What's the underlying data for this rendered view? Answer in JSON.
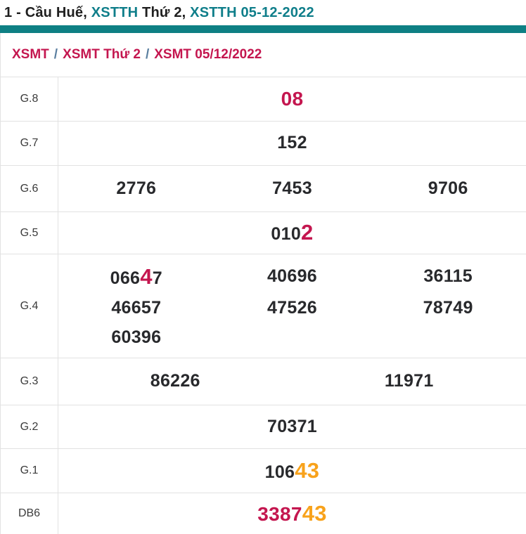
{
  "colors": {
    "teal-bar": "#0e8084",
    "teal-text": "#0f7e8a",
    "crimson": "#c4164f",
    "orange": "#f8a21b",
    "dark": "#1f1f1f",
    "num": "#28292c",
    "label": "#3b3b3b",
    "border": "#e2e2e2",
    "sep": "#5b7fa0"
  },
  "header": {
    "title_parts": [
      {
        "text": "1 - Cầu Huế, ",
        "color": "dark"
      },
      {
        "text": "XSTTH",
        "color": "teal"
      },
      {
        "text": " Thứ 2, ",
        "color": "dark"
      },
      {
        "text": "XSTTH 05-12-2022",
        "color": "teal"
      }
    ]
  },
  "breadcrumb": {
    "separator": "/",
    "items": [
      "XSMT",
      "XSMT Thứ 2",
      "XSMT 05/12/2022"
    ]
  },
  "results": {
    "rows": [
      {
        "label": "G.8",
        "columns": 1,
        "numbers": [
          {
            "segments": [
              {
                "text": "08",
                "color": "crimson",
                "size": "lg"
              }
            ]
          }
        ]
      },
      {
        "label": "G.7",
        "columns": 1,
        "numbers": [
          {
            "segments": [
              {
                "text": "152"
              }
            ]
          }
        ]
      },
      {
        "label": "G.6",
        "columns": 3,
        "numbers": [
          {
            "segments": [
              {
                "text": "2776"
              }
            ]
          },
          {
            "segments": [
              {
                "text": "7453"
              }
            ]
          },
          {
            "segments": [
              {
                "text": "9706"
              }
            ]
          }
        ]
      },
      {
        "label": "G.5",
        "columns": 1,
        "numbers": [
          {
            "segments": [
              {
                "text": "010"
              },
              {
                "text": "2",
                "color": "crimson",
                "size": "xl"
              }
            ]
          }
        ]
      },
      {
        "label": "G.4",
        "columns": 3,
        "numbers": [
          {
            "segments": [
              {
                "text": "066"
              },
              {
                "text": "4",
                "color": "crimson",
                "size": "xl"
              },
              {
                "text": "7"
              }
            ]
          },
          {
            "segments": [
              {
                "text": "40696"
              }
            ]
          },
          {
            "segments": [
              {
                "text": "36115"
              }
            ]
          },
          {
            "segments": [
              {
                "text": "46657"
              }
            ]
          },
          {
            "segments": [
              {
                "text": "47526"
              }
            ]
          },
          {
            "segments": [
              {
                "text": "78749"
              }
            ]
          },
          {
            "segments": [
              {
                "text": "60396"
              }
            ]
          }
        ]
      },
      {
        "label": "G.3",
        "columns": 2,
        "numbers": [
          {
            "segments": [
              {
                "text": "86226"
              }
            ]
          },
          {
            "segments": [
              {
                "text": "11971"
              }
            ]
          }
        ]
      },
      {
        "label": "G.2",
        "columns": 1,
        "numbers": [
          {
            "segments": [
              {
                "text": "70371"
              }
            ]
          }
        ]
      },
      {
        "label": "G.1",
        "columns": 1,
        "numbers": [
          {
            "segments": [
              {
                "text": "106"
              },
              {
                "text": "43",
                "color": "orange",
                "size": "xl"
              }
            ]
          }
        ]
      },
      {
        "label": "DB6",
        "columns": 1,
        "numbers": [
          {
            "segments": [
              {
                "text": "3387",
                "color": "crimson",
                "size": "lg"
              },
              {
                "text": "43",
                "color": "orange",
                "size": "xl"
              }
            ]
          }
        ]
      }
    ]
  }
}
